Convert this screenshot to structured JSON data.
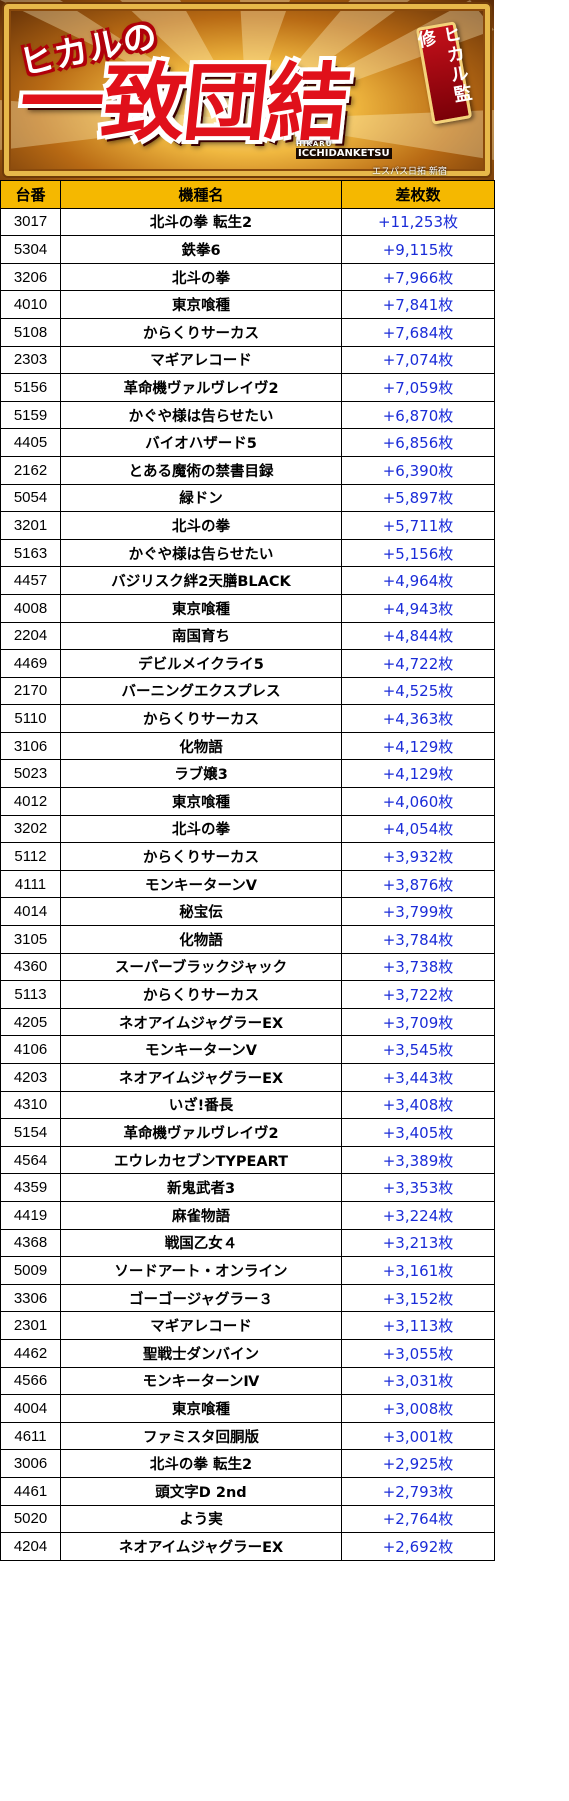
{
  "banner": {
    "sub_title": "ヒカルの",
    "main_title": "一致団結",
    "badge": "ヒカル監修",
    "logo_line1": "HIKARU",
    "logo_line2": "ICCHIDANKETSU",
    "credit": "エスパス日拓 新宿"
  },
  "table": {
    "headers": [
      "台番",
      "機種名",
      "差枚数"
    ],
    "rows": [
      {
        "num": "3017",
        "name": "北斗の拳 転生2",
        "diff": "+11,253枚"
      },
      {
        "num": "5304",
        "name": "鉄拳6",
        "diff": "+9,115枚"
      },
      {
        "num": "3206",
        "name": "北斗の拳",
        "diff": "+7,966枚"
      },
      {
        "num": "4010",
        "name": "東京喰種",
        "diff": "+7,841枚"
      },
      {
        "num": "5108",
        "name": "からくりサーカス",
        "diff": "+7,684枚"
      },
      {
        "num": "2303",
        "name": "マギアレコード",
        "diff": "+7,074枚"
      },
      {
        "num": "5156",
        "name": "革命機ヴァルヴレイヴ2",
        "diff": "+7,059枚"
      },
      {
        "num": "5159",
        "name": "かぐや様は告らせたい",
        "diff": "+6,870枚"
      },
      {
        "num": "4405",
        "name": "バイオハザード5",
        "diff": "+6,856枚"
      },
      {
        "num": "2162",
        "name": "とある魔術の禁書目録",
        "diff": "+6,390枚"
      },
      {
        "num": "5054",
        "name": "緑ドン",
        "diff": "+5,897枚"
      },
      {
        "num": "3201",
        "name": "北斗の拳",
        "diff": "+5,711枚"
      },
      {
        "num": "5163",
        "name": "かぐや様は告らせたい",
        "diff": "+5,156枚"
      },
      {
        "num": "4457",
        "name": "バジリスク絆2天膳BLACK",
        "diff": "+4,964枚"
      },
      {
        "num": "4008",
        "name": "東京喰種",
        "diff": "+4,943枚"
      },
      {
        "num": "2204",
        "name": "南国育ち",
        "diff": "+4,844枚"
      },
      {
        "num": "4469",
        "name": "デビルメイクライ5",
        "diff": "+4,722枚"
      },
      {
        "num": "2170",
        "name": "バーニングエクスプレス",
        "diff": "+4,525枚"
      },
      {
        "num": "5110",
        "name": "からくりサーカス",
        "diff": "+4,363枚"
      },
      {
        "num": "3106",
        "name": "化物語",
        "diff": "+4,129枚"
      },
      {
        "num": "5023",
        "name": "ラブ嬢3",
        "diff": "+4,129枚"
      },
      {
        "num": "4012",
        "name": "東京喰種",
        "diff": "+4,060枚"
      },
      {
        "num": "3202",
        "name": "北斗の拳",
        "diff": "+4,054枚"
      },
      {
        "num": "5112",
        "name": "からくりサーカス",
        "diff": "+3,932枚"
      },
      {
        "num": "4111",
        "name": "モンキーターンV",
        "diff": "+3,876枚"
      },
      {
        "num": "4014",
        "name": "秘宝伝",
        "diff": "+3,799枚"
      },
      {
        "num": "3105",
        "name": "化物語",
        "diff": "+3,784枚"
      },
      {
        "num": "4360",
        "name": "スーパーブラックジャック",
        "diff": "+3,738枚"
      },
      {
        "num": "5113",
        "name": "からくりサーカス",
        "diff": "+3,722枚"
      },
      {
        "num": "4205",
        "name": "ネオアイムジャグラーEX",
        "diff": "+3,709枚"
      },
      {
        "num": "4106",
        "name": "モンキーターンV",
        "diff": "+3,545枚"
      },
      {
        "num": "4203",
        "name": "ネオアイムジャグラーEX",
        "diff": "+3,443枚"
      },
      {
        "num": "4310",
        "name": "いざ!番長",
        "diff": "+3,408枚"
      },
      {
        "num": "5154",
        "name": "革命機ヴァルヴレイヴ2",
        "diff": "+3,405枚"
      },
      {
        "num": "4564",
        "name": "エウレカセブンTYPEART",
        "diff": "+3,389枚"
      },
      {
        "num": "4359",
        "name": "新鬼武者3",
        "diff": "+3,353枚"
      },
      {
        "num": "4419",
        "name": "麻雀物語",
        "diff": "+3,224枚"
      },
      {
        "num": "4368",
        "name": "戦国乙女４",
        "diff": "+3,213枚"
      },
      {
        "num": "5009",
        "name": "ソードアート・オンライン",
        "diff": "+3,161枚"
      },
      {
        "num": "3306",
        "name": "ゴーゴージャグラー３",
        "diff": "+3,152枚"
      },
      {
        "num": "2301",
        "name": "マギアレコード",
        "diff": "+3,113枚"
      },
      {
        "num": "4462",
        "name": "聖戦士ダンバイン",
        "diff": "+3,055枚"
      },
      {
        "num": "4566",
        "name": "モンキーターンⅣ",
        "diff": "+3,031枚"
      },
      {
        "num": "4004",
        "name": "東京喰種",
        "diff": "+3,008枚"
      },
      {
        "num": "4611",
        "name": "ファミスタ回胴版",
        "diff": "+3,001枚"
      },
      {
        "num": "3006",
        "name": "北斗の拳 転生2",
        "diff": "+2,925枚"
      },
      {
        "num": "4461",
        "name": "頭文字D 2nd",
        "diff": "+2,793枚"
      },
      {
        "num": "5020",
        "name": "よう実",
        "diff": "+2,764枚"
      },
      {
        "num": "4204",
        "name": "ネオアイムジャグラーEX",
        "diff": "+2,692枚"
      }
    ]
  }
}
